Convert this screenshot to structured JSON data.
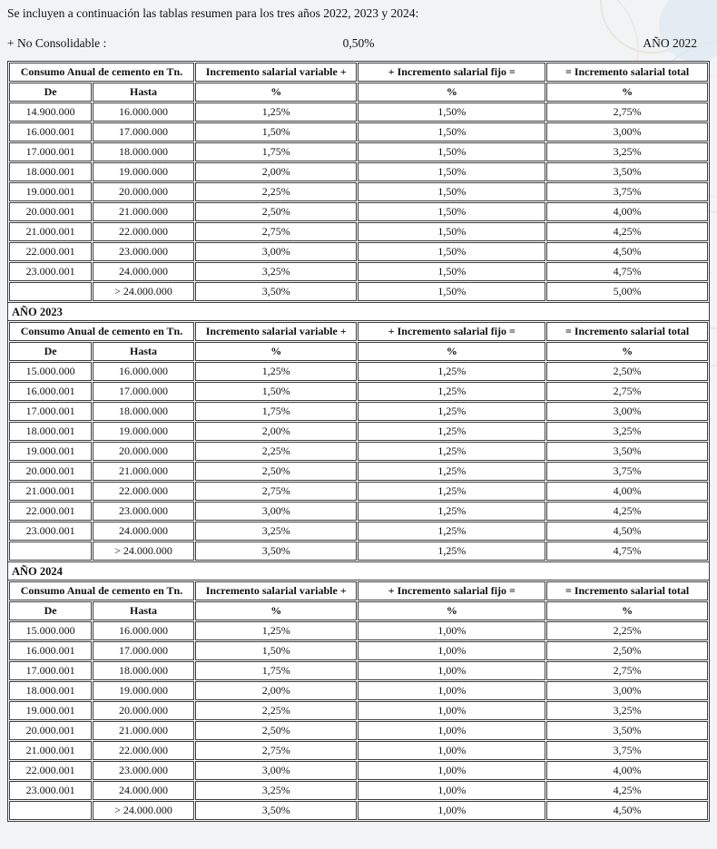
{
  "page": {
    "intro": "Se incluyen a continuación las tablas resumen para los tres años 2022, 2023 y 2024:",
    "no_consolidable_label": "+ No Consolidable :",
    "no_consolidable_value": "0,50%",
    "year_2022_label": "AÑO 2022"
  },
  "table_headers": {
    "consumo": "Consumo Anual de cemento en Tn.",
    "variable": "Incremento salarial variable +",
    "fijo": "+ Incremento salarial fijo =",
    "total": "= Incremento salarial total",
    "de": "De",
    "hasta": "Hasta",
    "pct": "%"
  },
  "columns": [
    "de",
    "hasta",
    "variable",
    "fijo",
    "total"
  ],
  "sections": [
    {
      "year_label": "AÑO 2022",
      "rows": [
        [
          "14.900.000",
          "16.000.000",
          "1,25%",
          "1,50%",
          "2,75%"
        ],
        [
          "16.000.001",
          "17.000.000",
          "1,50%",
          "1,50%",
          "3,00%"
        ],
        [
          "17.000.001",
          "18.000.000",
          "1,75%",
          "1,50%",
          "3,25%"
        ],
        [
          "18.000.001",
          "19.000.000",
          "2,00%",
          "1,50%",
          "3,50%"
        ],
        [
          "19.000.001",
          "20.000.000",
          "2,25%",
          "1,50%",
          "3,75%"
        ],
        [
          "20.000.001",
          "21.000.000",
          "2,50%",
          "1,50%",
          "4,00%"
        ],
        [
          "21.000.001",
          "22.000.000",
          "2,75%",
          "1,50%",
          "4,25%"
        ],
        [
          "22.000.001",
          "23.000.000",
          "3,00%",
          "1,50%",
          "4,50%"
        ],
        [
          "23.000.001",
          "24.000.000",
          "3,25%",
          "1,50%",
          "4,75%"
        ],
        [
          "",
          "> 24.000.000",
          "3,50%",
          "1,50%",
          "5,00%"
        ]
      ]
    },
    {
      "year_label": "AÑO 2023",
      "rows": [
        [
          "15.000.000",
          "16.000.000",
          "1,25%",
          "1,25%",
          "2,50%"
        ],
        [
          "16.000.001",
          "17.000.000",
          "1,50%",
          "1,25%",
          "2,75%"
        ],
        [
          "17.000.001",
          "18.000.000",
          "1,75%",
          "1,25%",
          "3,00%"
        ],
        [
          "18.000.001",
          "19.000.000",
          "2,00%",
          "1,25%",
          "3,25%"
        ],
        [
          "19.000.001",
          "20.000.000",
          "2,25%",
          "1,25%",
          "3,50%"
        ],
        [
          "20.000.001",
          "21.000.000",
          "2,50%",
          "1,25%",
          "3,75%"
        ],
        [
          "21.000.001",
          "22.000.000",
          "2,75%",
          "1,25%",
          "4,00%"
        ],
        [
          "22.000.001",
          "23.000.000",
          "3,00%",
          "1,25%",
          "4,25%"
        ],
        [
          "23.000.001",
          "24.000.000",
          "3,25%",
          "1,25%",
          "4,50%"
        ],
        [
          "",
          "> 24.000.000",
          "3,50%",
          "1,25%",
          "4,75%"
        ]
      ]
    },
    {
      "year_label": "AÑO 2024",
      "rows": [
        [
          "15.000.000",
          "16.000.000",
          "1,25%",
          "1,00%",
          "2,25%"
        ],
        [
          "16.000.001",
          "17.000.000",
          "1,50%",
          "1,00%",
          "2,50%"
        ],
        [
          "17.000.001",
          "18.000.000",
          "1,75%",
          "1,00%",
          "2,75%"
        ],
        [
          "18.000.001",
          "19.000.000",
          "2,00%",
          "1,00%",
          "3,00%"
        ],
        [
          "19.000.001",
          "20.000.000",
          "2,25%",
          "1,00%",
          "3,25%"
        ],
        [
          "20.000.001",
          "21.000.000",
          "2,50%",
          "1,00%",
          "3,50%"
        ],
        [
          "21.000.001",
          "22.000.000",
          "2,75%",
          "1,00%",
          "3,75%"
        ],
        [
          "22.000.001",
          "23.000.000",
          "3,00%",
          "1,00%",
          "4,00%"
        ],
        [
          "23.000.001",
          "24.000.000",
          "3,25%",
          "1,00%",
          "4,25%"
        ],
        [
          "",
          "> 24.000.000",
          "3,50%",
          "1,00%",
          "4,50%"
        ]
      ]
    }
  ],
  "colors": {
    "page_background": "#f2f3f5",
    "cell_background": "#ffffff",
    "table_border": "#3d3d3d",
    "text": "#111111",
    "watermark_blue": "#dfe8f0",
    "watermark_blue_fill": "#e4ecf3",
    "watermark_beige": "#e9e5dc"
  }
}
